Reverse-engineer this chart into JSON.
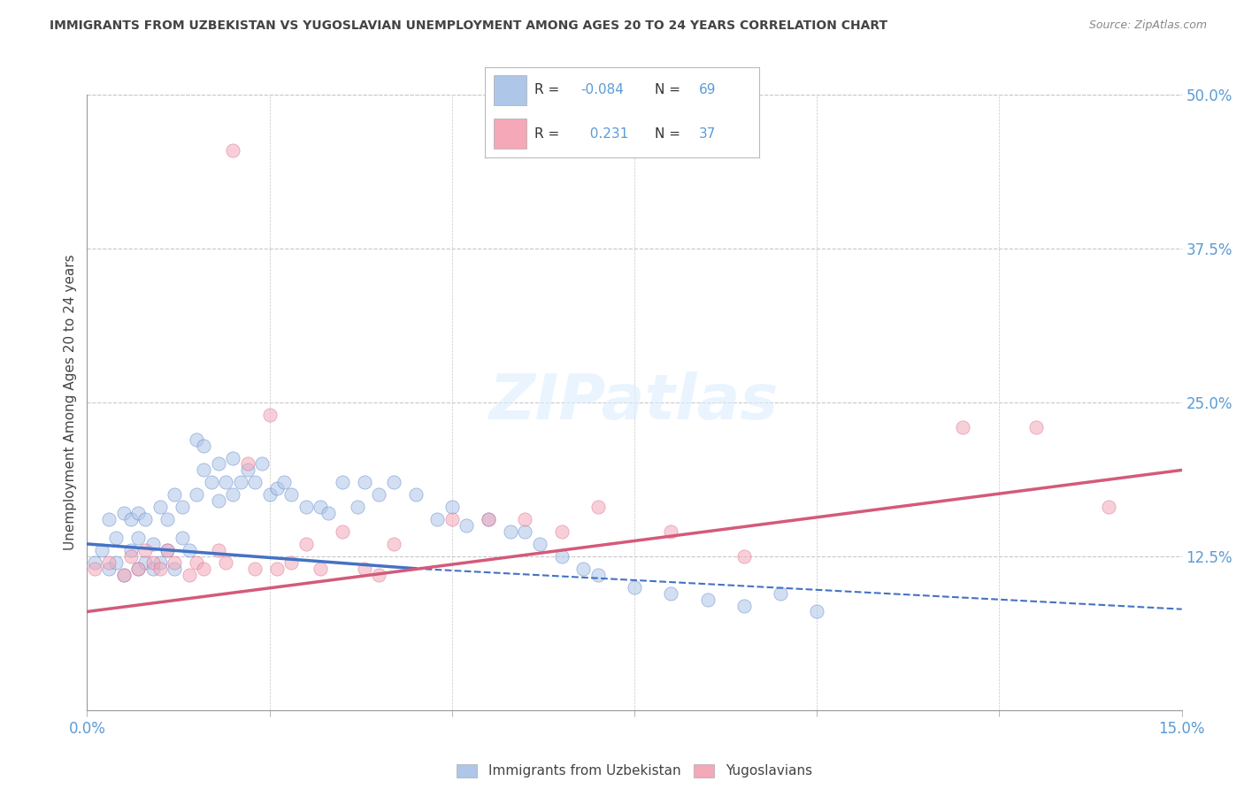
{
  "title": "IMMIGRANTS FROM UZBEKISTAN VS YUGOSLAVIAN UNEMPLOYMENT AMONG AGES 20 TO 24 YEARS CORRELATION CHART",
  "source": "Source: ZipAtlas.com",
  "ylabel": "Unemployment Among Ages 20 to 24 years",
  "xlim": [
    0.0,
    0.15
  ],
  "ylim": [
    0.0,
    0.5
  ],
  "ytick_right_values": [
    0.5,
    0.375,
    0.25,
    0.125
  ],
  "ytick_right_labels": [
    "50.0%",
    "37.5%",
    "25.0%",
    "12.5%"
  ],
  "xtick_values": [
    0.0,
    0.025,
    0.05,
    0.075,
    0.1,
    0.125,
    0.15
  ],
  "legend_items": [
    {
      "color": "#aec6e8",
      "label": "Immigrants from Uzbekistan",
      "R": "-0.084",
      "N": "69"
    },
    {
      "color": "#f4a8b8",
      "label": "Yugoslavians",
      "R": "0.231",
      "N": "37"
    }
  ],
  "blue_scatter_x": [
    0.001,
    0.002,
    0.003,
    0.003,
    0.004,
    0.004,
    0.005,
    0.005,
    0.006,
    0.006,
    0.007,
    0.007,
    0.007,
    0.008,
    0.008,
    0.009,
    0.009,
    0.01,
    0.01,
    0.011,
    0.011,
    0.012,
    0.012,
    0.013,
    0.013,
    0.014,
    0.015,
    0.015,
    0.016,
    0.016,
    0.017,
    0.018,
    0.018,
    0.019,
    0.02,
    0.02,
    0.021,
    0.022,
    0.023,
    0.024,
    0.025,
    0.026,
    0.027,
    0.028,
    0.03,
    0.032,
    0.033,
    0.035,
    0.037,
    0.038,
    0.04,
    0.042,
    0.045,
    0.048,
    0.05,
    0.052,
    0.055,
    0.058,
    0.06,
    0.062,
    0.065,
    0.068,
    0.07,
    0.075,
    0.08,
    0.085,
    0.09,
    0.095,
    0.1
  ],
  "blue_scatter_y": [
    0.12,
    0.13,
    0.115,
    0.155,
    0.12,
    0.14,
    0.11,
    0.16,
    0.13,
    0.155,
    0.115,
    0.14,
    0.16,
    0.12,
    0.155,
    0.115,
    0.135,
    0.12,
    0.165,
    0.13,
    0.155,
    0.115,
    0.175,
    0.14,
    0.165,
    0.13,
    0.22,
    0.175,
    0.195,
    0.215,
    0.185,
    0.17,
    0.2,
    0.185,
    0.175,
    0.205,
    0.185,
    0.195,
    0.185,
    0.2,
    0.175,
    0.18,
    0.185,
    0.175,
    0.165,
    0.165,
    0.16,
    0.185,
    0.165,
    0.185,
    0.175,
    0.185,
    0.175,
    0.155,
    0.165,
    0.15,
    0.155,
    0.145,
    0.145,
    0.135,
    0.125,
    0.115,
    0.11,
    0.1,
    0.095,
    0.09,
    0.085,
    0.095,
    0.08
  ],
  "pink_scatter_x": [
    0.001,
    0.003,
    0.005,
    0.006,
    0.007,
    0.008,
    0.009,
    0.01,
    0.011,
    0.012,
    0.014,
    0.015,
    0.016,
    0.018,
    0.019,
    0.02,
    0.022,
    0.023,
    0.025,
    0.026,
    0.028,
    0.03,
    0.032,
    0.035,
    0.038,
    0.04,
    0.042,
    0.05,
    0.055,
    0.06,
    0.065,
    0.07,
    0.08,
    0.09,
    0.12,
    0.13,
    0.14
  ],
  "pink_scatter_y": [
    0.115,
    0.12,
    0.11,
    0.125,
    0.115,
    0.13,
    0.12,
    0.115,
    0.13,
    0.12,
    0.11,
    0.12,
    0.115,
    0.13,
    0.12,
    0.455,
    0.2,
    0.115,
    0.24,
    0.115,
    0.12,
    0.135,
    0.115,
    0.145,
    0.115,
    0.11,
    0.135,
    0.155,
    0.155,
    0.155,
    0.145,
    0.165,
    0.145,
    0.125,
    0.23,
    0.23,
    0.165
  ],
  "blue_solid_line_x": [
    0.0,
    0.045
  ],
  "blue_solid_line_y": [
    0.135,
    0.115
  ],
  "blue_dash_line_x": [
    0.045,
    0.15
  ],
  "blue_dash_line_y": [
    0.115,
    0.082
  ],
  "pink_solid_line_x": [
    0.0,
    0.15
  ],
  "pink_solid_line_y": [
    0.08,
    0.195
  ],
  "watermark": "ZIPatlas",
  "bg_color": "#ffffff",
  "scatter_alpha": 0.55,
  "scatter_size": 120,
  "grid_color": "#c8c8c8",
  "title_color": "#444444",
  "axis_label_color": "#444444",
  "tick_color": "#5b9bd5",
  "legend_text_color": "#5b9bd5",
  "blue_line_color": "#4472c4",
  "pink_line_color": "#d45a7a"
}
